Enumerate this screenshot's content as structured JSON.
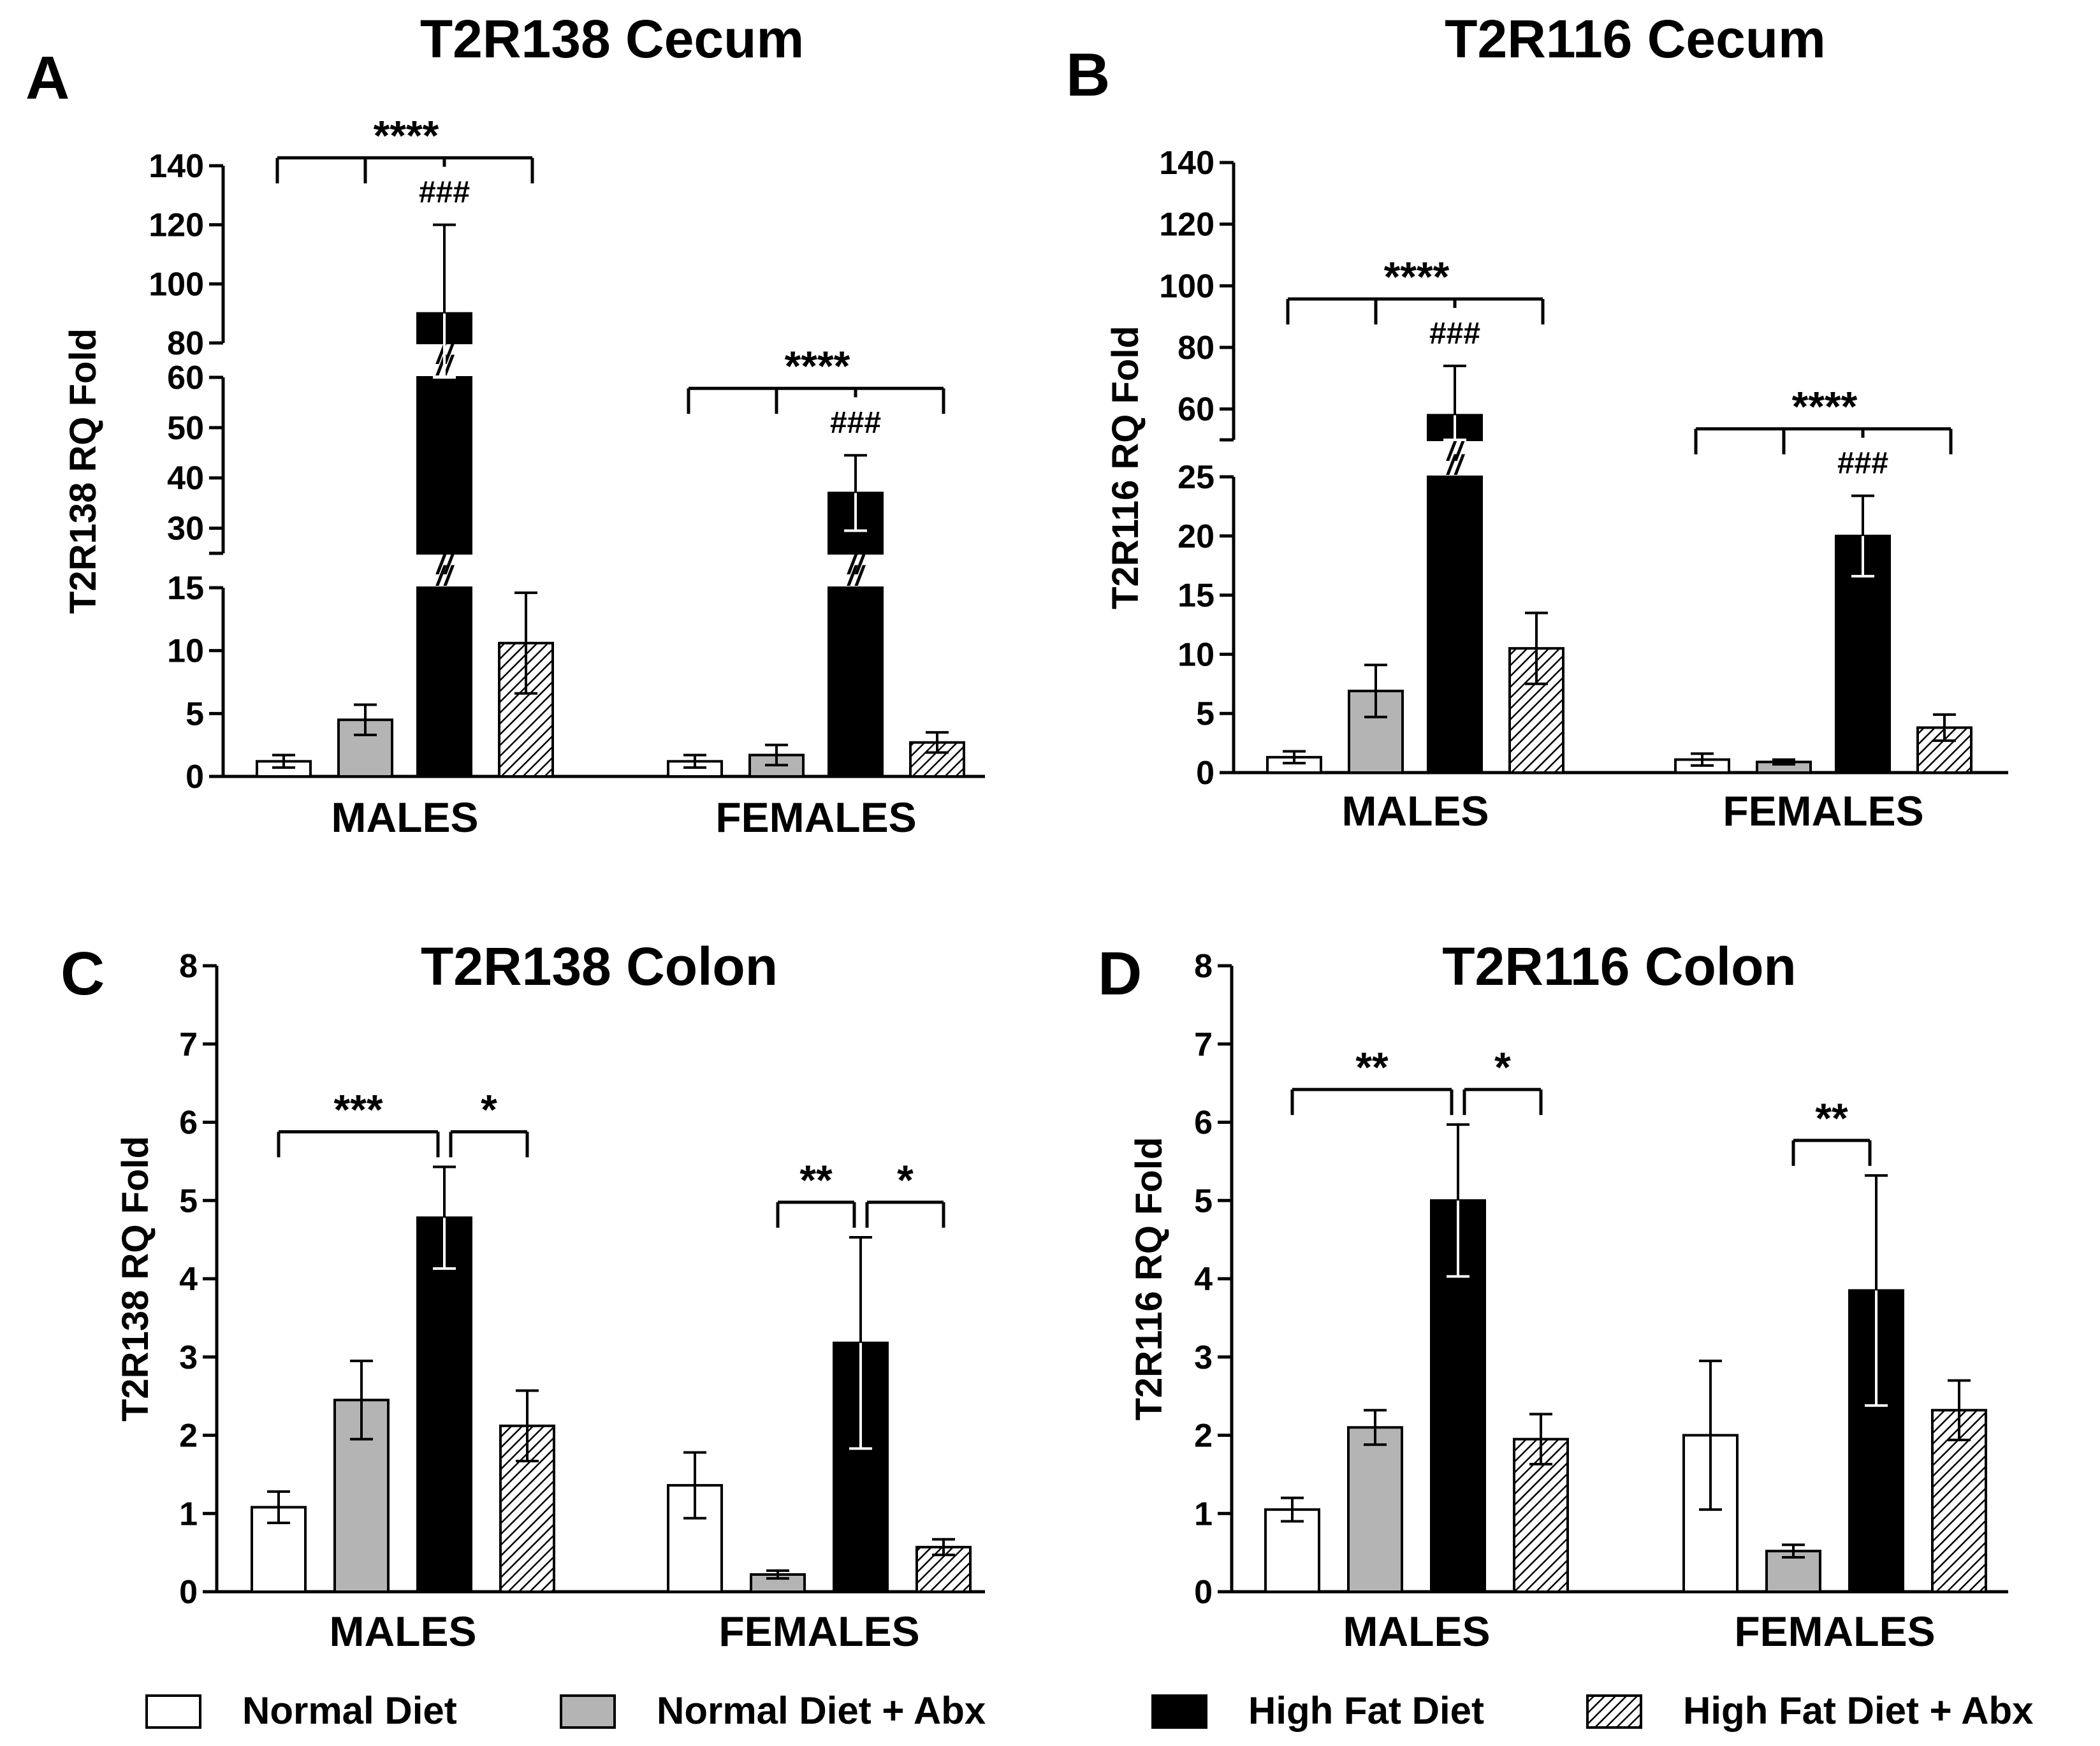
{
  "chart_data": [
    {
      "panel": "A",
      "title": "T2R138 Cecum",
      "type": "bar",
      "ylabel": "T2R138 RQ Fold",
      "categories": [
        "MALES",
        "FEMALES"
      ],
      "axis_segments": [
        {
          "range": [
            0,
            15
          ],
          "ticks": [
            0,
            5,
            10,
            15
          ]
        },
        {
          "range": [
            25,
            60
          ],
          "ticks": [
            30,
            40,
            50,
            60
          ]
        },
        {
          "range": [
            80,
            140
          ],
          "ticks": [
            80,
            100,
            120,
            140
          ]
        }
      ],
      "series": [
        {
          "name": "Normal Diet",
          "values": [
            1.2,
            1.2
          ],
          "errors": [
            0.5,
            0.5
          ]
        },
        {
          "name": "Normal Diet + Abx",
          "values": [
            4.5,
            1.7
          ],
          "errors": [
            1.2,
            0.8
          ]
        },
        {
          "name": "High Fat Diet",
          "values": [
            90,
            37
          ],
          "errors": [
            30,
            7.5
          ]
        },
        {
          "name": "High Fat Diet + Abx",
          "values": [
            10.6,
            2.7
          ],
          "errors": [
            4.0,
            0.8
          ]
        }
      ],
      "annotations": [
        {
          "text": "****",
          "group": 0,
          "type": "bracket-multi"
        },
        {
          "text": "###",
          "group": 0
        },
        {
          "text": "****",
          "group": 1,
          "type": "bracket-multi"
        },
        {
          "text": "###",
          "group": 1
        },
        {
          "text": "//"
        }
      ]
    },
    {
      "panel": "B",
      "title": "T2R116 Cecum",
      "type": "bar",
      "ylabel": "T2R116 RQ Fold",
      "categories": [
        "MALES",
        "FEMALES"
      ],
      "axis_segments": [
        {
          "range": [
            0,
            25
          ],
          "ticks": [
            0,
            5,
            10,
            15,
            20,
            25
          ]
        },
        {
          "range": [
            50,
            140
          ],
          "ticks": [
            60,
            80,
            100,
            120,
            140
          ]
        }
      ],
      "series": [
        {
          "name": "Normal Diet",
          "values": [
            1.3,
            1.1
          ],
          "errors": [
            0.5,
            0.5
          ]
        },
        {
          "name": "Normal Diet + Abx",
          "values": [
            6.9,
            0.9
          ],
          "errors": [
            2.2,
            0.2
          ]
        },
        {
          "name": "High Fat Diet",
          "values": [
            58,
            20
          ],
          "errors": [
            16,
            3.4
          ]
        },
        {
          "name": "High Fat Diet + Abx",
          "values": [
            10.5,
            3.8
          ],
          "errors": [
            3.0,
            1.1
          ]
        }
      ],
      "annotations": [
        {
          "text": "****",
          "group": 0,
          "type": "bracket-multi"
        },
        {
          "text": "###",
          "group": 0
        },
        {
          "text": "****",
          "group": 1,
          "type": "bracket-multi"
        },
        {
          "text": "###",
          "group": 1
        },
        {
          "text": "//"
        }
      ]
    },
    {
      "panel": "C",
      "title": "T2R138 Colon",
      "type": "bar",
      "ylabel": "T2R138 RQ Fold",
      "categories": [
        "MALES",
        "FEMALES"
      ],
      "ylim": [
        0,
        8
      ],
      "yticks": [
        0,
        1,
        2,
        3,
        4,
        5,
        6,
        7,
        8
      ],
      "series": [
        {
          "name": "Normal Diet",
          "values": [
            1.08,
            1.36
          ],
          "errors": [
            0.2,
            0.42
          ]
        },
        {
          "name": "Normal Diet + Abx",
          "values": [
            2.45,
            0.22
          ],
          "errors": [
            0.5,
            0.05
          ]
        },
        {
          "name": "High Fat Diet",
          "values": [
            4.78,
            3.18
          ],
          "errors": [
            0.65,
            1.35
          ]
        },
        {
          "name": "High Fat Diet + Abx",
          "values": [
            2.12,
            0.57
          ],
          "errors": [
            0.45,
            0.1
          ]
        }
      ],
      "annotations": [
        {
          "text": "***",
          "group": 0,
          "from": 0,
          "to": 2
        },
        {
          "text": "*",
          "group": 0,
          "from": 2,
          "to": 3
        },
        {
          "text": "**",
          "group": 1,
          "from": 1,
          "to": 2
        },
        {
          "text": "*",
          "group": 1,
          "from": 2,
          "to": 3
        }
      ]
    },
    {
      "panel": "D",
      "title": "T2R116 Colon",
      "type": "bar",
      "ylabel": "T2R116 RQ Fold",
      "categories": [
        "MALES",
        "FEMALES"
      ],
      "ylim": [
        0,
        8
      ],
      "yticks": [
        0,
        1,
        2,
        3,
        4,
        5,
        6,
        7,
        8
      ],
      "series": [
        {
          "name": "Normal Diet",
          "values": [
            1.05,
            2.0
          ],
          "errors": [
            0.15,
            0.95
          ]
        },
        {
          "name": "Normal Diet + Abx",
          "values": [
            2.1,
            0.52
          ],
          "errors": [
            0.22,
            0.08
          ]
        },
        {
          "name": "High Fat Diet",
          "values": [
            5.0,
            3.85
          ],
          "errors": [
            0.97,
            1.47
          ]
        },
        {
          "name": "High Fat Diet + Abx",
          "values": [
            1.95,
            2.32
          ],
          "errors": [
            0.32,
            0.38
          ]
        }
      ],
      "annotations": [
        {
          "text": "**",
          "group": 0,
          "from": 0,
          "to": 2
        },
        {
          "text": "*",
          "group": 0,
          "from": 2,
          "to": 3
        },
        {
          "text": "**",
          "group": 1,
          "from": 1,
          "to": 2
        }
      ]
    }
  ],
  "legend": [
    {
      "label": "Normal Diet",
      "fill": "#ffffff"
    },
    {
      "label": "Normal Diet + Abx",
      "fill": "#b4b4b4"
    },
    {
      "label": "High Fat Diet",
      "fill": "#000000"
    },
    {
      "label": "High Fat Diet + Abx",
      "fill": "hatch"
    }
  ],
  "colors": {
    "normal": "#ffffff",
    "normal_abx": "#b4b4b4",
    "hfd": "#000000",
    "stroke": "#000000"
  }
}
